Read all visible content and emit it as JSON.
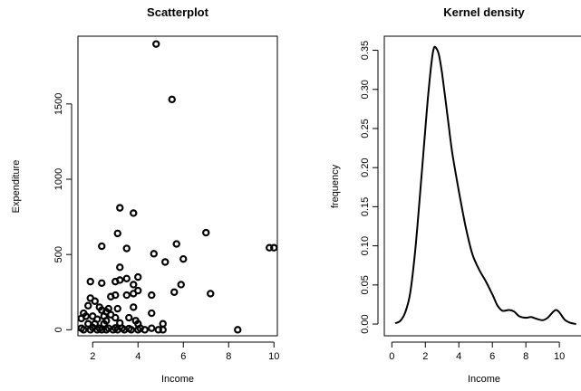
{
  "chart_data": [
    {
      "type": "scatter",
      "title": "Scatterplot",
      "xlabel": "Income",
      "ylabel": "Expenditure",
      "xticks": [
        2,
        4,
        6,
        8,
        10
      ],
      "yticks": [
        0,
        500,
        1000,
        1500
      ],
      "xlim": [
        1.35,
        10.15
      ],
      "ylim": [
        -40,
        1950
      ],
      "grid": false,
      "points": [
        [
          4.8,
          1898
        ],
        [
          5.5,
          1530
        ],
        [
          3.2,
          810
        ],
        [
          3.8,
          775
        ],
        [
          7.0,
          645
        ],
        [
          3.1,
          640
        ],
        [
          9.8,
          545
        ],
        [
          10.0,
          545
        ],
        [
          5.7,
          570
        ],
        [
          4.7,
          505
        ],
        [
          6.0,
          470
        ],
        [
          2.4,
          555
        ],
        [
          3.5,
          540
        ],
        [
          5.2,
          450
        ],
        [
          3.2,
          415
        ],
        [
          5.6,
          250
        ],
        [
          7.2,
          240
        ],
        [
          1.9,
          320
        ],
        [
          2.4,
          310
        ],
        [
          4.0,
          350
        ],
        [
          3.0,
          320
        ],
        [
          3.2,
          330
        ],
        [
          3.5,
          340
        ],
        [
          5.9,
          300
        ],
        [
          3.8,
          300
        ],
        [
          4.0,
          260
        ],
        [
          3.8,
          240
        ],
        [
          1.9,
          210
        ],
        [
          2.1,
          190
        ],
        [
          2.8,
          220
        ],
        [
          3.0,
          230
        ],
        [
          3.5,
          230
        ],
        [
          4.6,
          230
        ],
        [
          1.8,
          160
        ],
        [
          2.3,
          150
        ],
        [
          2.7,
          140
        ],
        [
          3.1,
          140
        ],
        [
          3.8,
          150
        ],
        [
          2.4,
          130
        ],
        [
          2.6,
          120
        ],
        [
          1.6,
          110
        ],
        [
          4.6,
          110
        ],
        [
          1.7,
          90
        ],
        [
          2.0,
          90
        ],
        [
          2.5,
          90
        ],
        [
          2.8,
          100
        ],
        [
          3.0,
          80
        ],
        [
          3.6,
          80
        ],
        [
          1.5,
          75
        ],
        [
          2.2,
          70
        ],
        [
          2.6,
          60
        ],
        [
          3.9,
          60
        ],
        [
          1.8,
          40
        ],
        [
          2.1,
          40
        ],
        [
          2.5,
          40
        ],
        [
          3.2,
          45
        ],
        [
          4.0,
          40
        ],
        [
          5.1,
          40
        ],
        [
          1.5,
          10
        ],
        [
          2.0,
          15
        ],
        [
          2.3,
          10
        ],
        [
          2.7,
          10
        ],
        [
          3.0,
          12
        ],
        [
          3.3,
          10
        ],
        [
          3.6,
          8
        ],
        [
          4.1,
          10
        ],
        [
          4.6,
          10
        ],
        [
          1.6,
          0
        ],
        [
          1.9,
          0
        ],
        [
          2.2,
          0
        ],
        [
          2.4,
          0
        ],
        [
          2.6,
          0
        ],
        [
          2.9,
          0
        ],
        [
          3.1,
          0
        ],
        [
          3.4,
          0
        ],
        [
          3.7,
          0
        ],
        [
          4.0,
          0
        ],
        [
          4.3,
          0
        ],
        [
          4.9,
          0
        ],
        [
          5.1,
          0
        ],
        [
          8.4,
          0
        ]
      ]
    },
    {
      "type": "line",
      "title": "Kernel density",
      "xlabel": "Income",
      "ylabel": "frequency",
      "xticks": [
        0,
        2,
        4,
        6,
        8,
        10
      ],
      "yticks": [
        0.0,
        0.05,
        0.1,
        0.15,
        0.2,
        0.25,
        0.3,
        0.35
      ],
      "ytick_labels": [
        "0.00",
        "0.05",
        "0.10",
        "0.15",
        "0.20",
        "0.25",
        "0.30",
        "0.35"
      ],
      "xlim": [
        -0.45,
        11.4
      ],
      "ylim": [
        -0.015,
        0.368
      ],
      "grid": false,
      "x": [
        0.2,
        0.5,
        0.8,
        1.1,
        1.4,
        1.7,
        2.0,
        2.2,
        2.4,
        2.5,
        2.6,
        2.8,
        3.0,
        3.3,
        3.6,
        4.0,
        4.4,
        4.8,
        5.2,
        5.6,
        6.0,
        6.3,
        6.6,
        7.0,
        7.3,
        7.6,
        8.0,
        8.3,
        8.6,
        9.0,
        9.3,
        9.6,
        9.8,
        10.0,
        10.3,
        10.6,
        11.0
      ],
      "y": [
        0.001,
        0.004,
        0.015,
        0.04,
        0.095,
        0.17,
        0.25,
        0.3,
        0.34,
        0.352,
        0.354,
        0.345,
        0.32,
        0.27,
        0.22,
        0.17,
        0.125,
        0.09,
        0.07,
        0.055,
        0.038,
        0.024,
        0.017,
        0.018,
        0.016,
        0.01,
        0.008,
        0.009,
        0.007,
        0.005,
        0.008,
        0.015,
        0.018,
        0.015,
        0.006,
        0.002,
        0.0
      ]
    }
  ]
}
